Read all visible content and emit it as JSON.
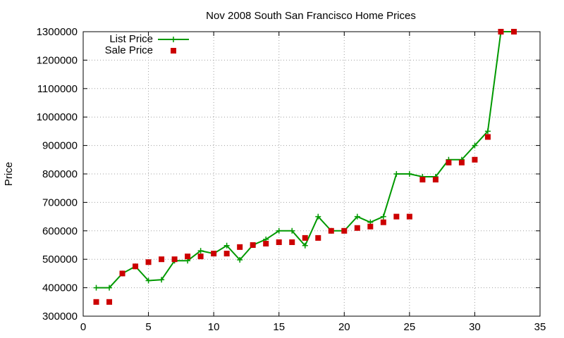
{
  "chart_data": {
    "type": "line",
    "title": "Nov 2008 South San Francisco Home Prices",
    "xlabel": "",
    "ylabel": "Price",
    "xlim": [
      0,
      35
    ],
    "ylim": [
      300000,
      1300000
    ],
    "x_ticks": [
      0,
      5,
      10,
      15,
      20,
      25,
      30,
      35
    ],
    "y_ticks": [
      300000,
      400000,
      500000,
      600000,
      700000,
      800000,
      900000,
      1000000,
      1100000,
      1200000,
      1300000
    ],
    "grid": true,
    "legend_position": "top-left",
    "series": [
      {
        "name": "List Price",
        "style": "line-with-plus-markers",
        "color": "#009900",
        "x": [
          1,
          2,
          3,
          4,
          5,
          6,
          7,
          8,
          9,
          10,
          11,
          12,
          13,
          14,
          15,
          16,
          17,
          18,
          19,
          20,
          21,
          22,
          23,
          24,
          25,
          26,
          27,
          28,
          29,
          30,
          31,
          32,
          33
        ],
        "y": [
          400000,
          400000,
          450000,
          475000,
          425000,
          428000,
          495000,
          495000,
          530000,
          520000,
          548000,
          498000,
          550000,
          570000,
          600000,
          600000,
          548000,
          650000,
          600000,
          600000,
          650000,
          630000,
          650000,
          800000,
          800000,
          790000,
          790000,
          850000,
          850000,
          900000,
          950000,
          1300000,
          1300000
        ]
      },
      {
        "name": "Sale Price",
        "style": "square-markers",
        "color": "#cc0000",
        "x": [
          1,
          2,
          3,
          4,
          5,
          6,
          7,
          8,
          9,
          10,
          11,
          12,
          13,
          14,
          15,
          16,
          17,
          18,
          19,
          20,
          21,
          22,
          23,
          24,
          25,
          26,
          27,
          28,
          29,
          30,
          31,
          32,
          33
        ],
        "y": [
          350000,
          350000,
          450000,
          475000,
          490000,
          500000,
          500000,
          510000,
          510000,
          520000,
          520000,
          543000,
          550000,
          555000,
          560000,
          560000,
          575000,
          575000,
          600000,
          600000,
          610000,
          615000,
          630000,
          650000,
          650000,
          780000,
          780000,
          840000,
          840000,
          850000,
          930000,
          1300000,
          1300000
        ]
      }
    ]
  }
}
